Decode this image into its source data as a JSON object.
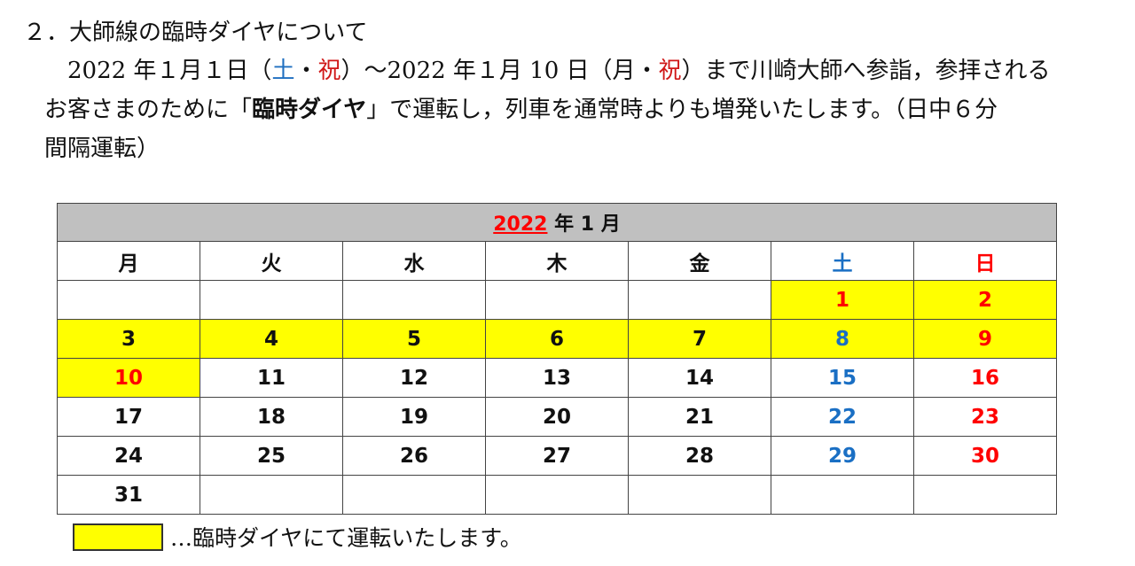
{
  "section": {
    "heading": "２．大師線の臨時ダイヤについて"
  },
  "paragraph": {
    "p1": "2022 年１月１日（",
    "sat": "土",
    "dot1": "・",
    "hol1": "祝",
    "p2": "）～2022 年１月 10 日（月・",
    "hol2": "祝",
    "p3": "）まで川崎大師へ参詣，参拝される",
    "p4": "お客さまのために「",
    "bold": "臨時ダイヤ",
    "p5": "」で運転し，列車を通常時よりも増発いたします。（日中６分",
    "p6": "間隔運転）"
  },
  "calendar": {
    "year": "2022",
    "month_label": " 年 1 月",
    "weekdays": [
      "月",
      "火",
      "水",
      "木",
      "金",
      "土",
      "日"
    ],
    "weeks": [
      [
        "",
        "",
        "",
        "",
        "",
        "1",
        "2"
      ],
      [
        "3",
        "4",
        "5",
        "6",
        "7",
        "8",
        "9"
      ],
      [
        "10",
        "11",
        "12",
        "13",
        "14",
        "15",
        "16"
      ],
      [
        "17",
        "18",
        "19",
        "20",
        "21",
        "22",
        "23"
      ],
      [
        "24",
        "25",
        "26",
        "27",
        "28",
        "29",
        "30"
      ],
      [
        "31",
        "",
        "",
        "",
        "",
        "",
        ""
      ]
    ],
    "highlighted_days": [
      "1",
      "2",
      "3",
      "4",
      "5",
      "6",
      "7",
      "8",
      "9",
      "10"
    ],
    "holidays": [
      "1",
      "10"
    ],
    "colors": {
      "highlight": "#ffff00",
      "saturday": "#1a6fc4",
      "sunday_holiday": "#ff0000",
      "title_bg": "#c0c0c0"
    }
  },
  "legend": {
    "text": "…臨時ダイヤにて運転いたします。"
  }
}
